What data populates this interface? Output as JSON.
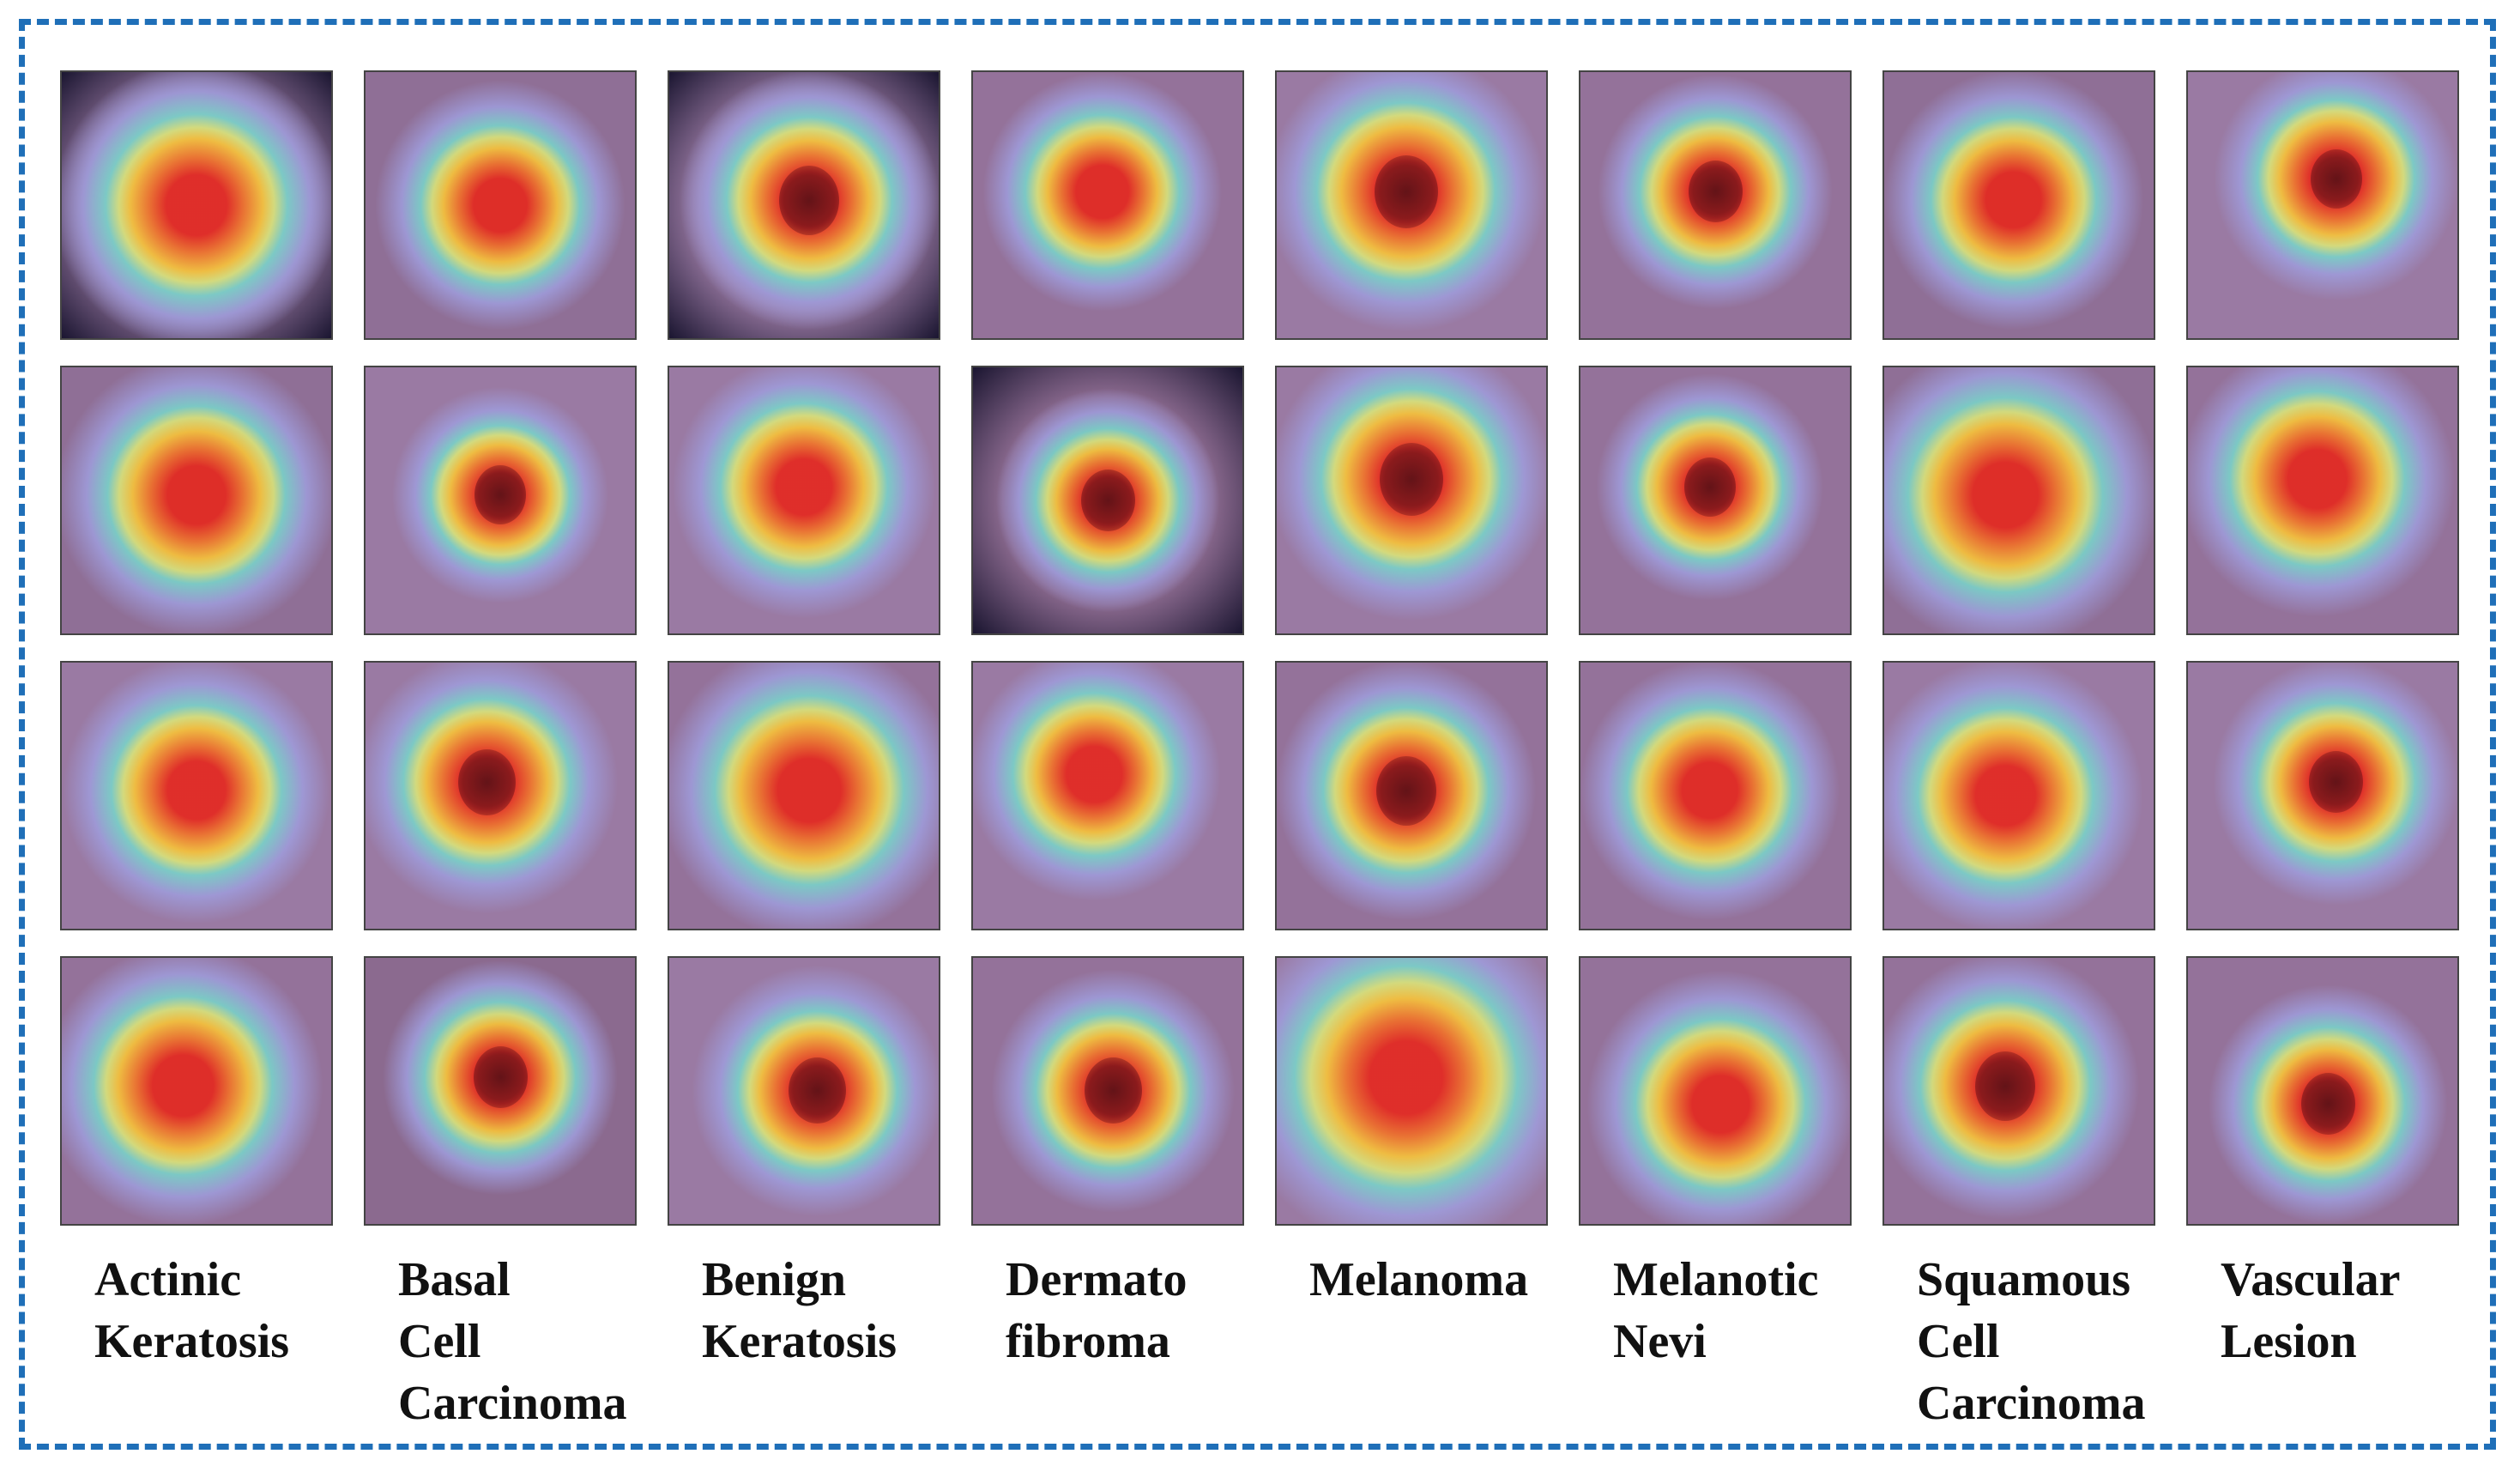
{
  "labels": [
    [
      "Actinic",
      "Keratosis"
    ],
    [
      "Basal",
      "Cell",
      "Carcinoma"
    ],
    [
      "Benign",
      "Keratosis"
    ],
    [
      "Dermato",
      "fibroma"
    ],
    [
      "Melanoma"
    ],
    [
      "Melanotic",
      "Nevi"
    ],
    [
      "Squamous",
      "Cell",
      "Carcinoma"
    ],
    [
      "Vascular",
      "Lesion"
    ]
  ],
  "colors": {
    "frame": "#1f6fb8",
    "skin_tones": [
      "#8f6f96",
      "#94729a",
      "#9a7aa3",
      "#8b6a8f"
    ],
    "heat_core": "#e5281f",
    "heat_mid": "#f6c23a",
    "heat_outer": "#7ad0c8",
    "heat_edge": "#9e9ad8"
  }
}
